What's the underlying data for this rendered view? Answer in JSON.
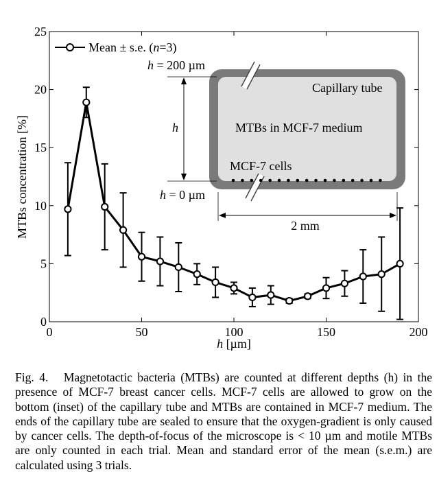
{
  "chart_data": {
    "type": "line",
    "xlabel_var": "h",
    "xlabel_unit": "[µm]",
    "ylabel": "MTBs concentration [%]",
    "xlim": [
      0,
      200
    ],
    "ylim": [
      0,
      25
    ],
    "xticks": [
      "0",
      "50",
      "100",
      "150",
      "200"
    ],
    "yticks": [
      "0",
      "5",
      "10",
      "15",
      "20",
      "25"
    ],
    "xtick_values": [
      0,
      50,
      100,
      150,
      200
    ],
    "ytick_values": [
      0,
      5,
      10,
      15,
      20,
      25
    ],
    "grid": false,
    "legend_position": "top-left",
    "series": [
      {
        "name": "Mean ± s.e. (n=3)",
        "x": [
          10,
          20,
          30,
          40,
          50,
          60,
          70,
          80,
          90,
          100,
          110,
          120,
          130,
          140,
          150,
          160,
          170,
          180,
          190
        ],
        "y": [
          9.7,
          18.9,
          9.9,
          7.9,
          5.6,
          5.2,
          4.7,
          4.1,
          3.4,
          2.9,
          2.1,
          2.3,
          1.8,
          2.2,
          2.9,
          3.3,
          3.9,
          4.1,
          5.0
        ],
        "err": [
          4.0,
          1.3,
          3.7,
          3.2,
          2.1,
          2.1,
          2.1,
          0.9,
          1.3,
          0.5,
          0.8,
          0.8,
          0.2,
          0.2,
          0.9,
          1.1,
          2.3,
          3.2,
          4.8
        ]
      }
    ],
    "legend": {
      "prefix": "Mean ± s.e. (",
      "var": "n",
      "suffix": "=3)"
    },
    "inset": {
      "top_label_var": "h",
      "top_label_rest": " = 200 µm",
      "bottom_label_var": "h",
      "bottom_label_rest": " = 0 µm",
      "side_label": "h",
      "tube_label": "Capillary tube",
      "medium_label": "MTBs in MCF-7 medium",
      "cells_label": "MCF-7 cells",
      "width_label": "2 mm",
      "tube_color": "#7a7a7a",
      "medium_color": "#e0e0e0"
    }
  },
  "caption": {
    "fig": "Fig. 4.",
    "text": "Magnetotactic bacteria (MTBs) are counted at different depths (h) in the presence of MCF-7 breast cancer cells. MCF-7 cells are allowed to grow on the bottom (inset) of the capillary tube and MTBs are contained in MCF-7 medium. The ends of the capillary tube are sealed to ensure that the oxygen-gradient is only caused by cancer cells. The depth-of-focus of the microscope is < 10 µm and motile MTBs are only counted in each trial. Mean and standard error of the mean (s.e.m.) are calculated using 3 trials."
  }
}
